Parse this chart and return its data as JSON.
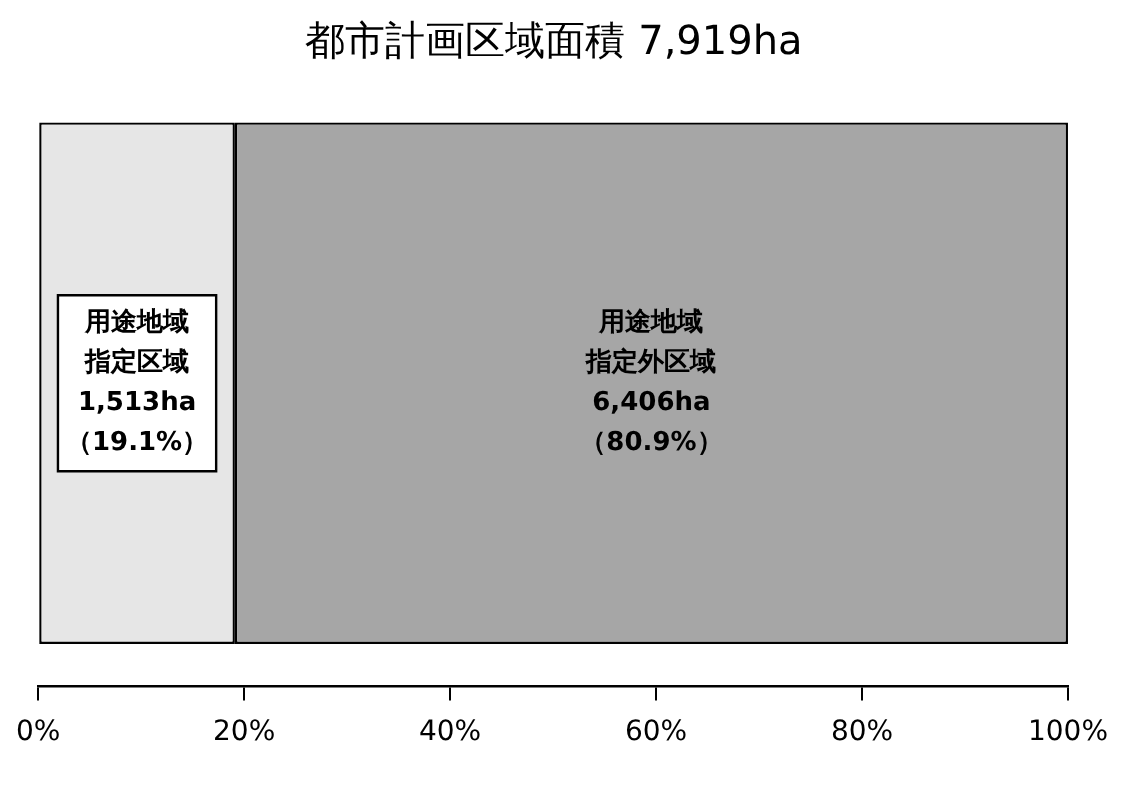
{
  "chart_data": {
    "type": "bar",
    "title": "都市計画区域面積 7,919ha",
    "orientation": "horizontal",
    "stacked": true,
    "categories": [
      null
    ],
    "series": [
      {
        "name": "用途地域指定区域",
        "color": "#e6e6e6",
        "values": [
          19.1
        ],
        "value_labels": [
          "1,513ha\n（19.1%）"
        ]
      },
      {
        "name": "用途地域指定外区域",
        "color": "#a6a6a6",
        "values": [
          80.9
        ],
        "value_labels": [
          "6,406ha\n（80.9%）"
        ]
      }
    ],
    "xlim": [
      0,
      100
    ],
    "xticks": [
      {
        "value": 0,
        "label": "0%"
      },
      {
        "value": 20,
        "label": "20%"
      },
      {
        "value": 40,
        "label": "40%"
      },
      {
        "value": 60,
        "label": "60%"
      },
      {
        "value": 80,
        "label": "80%"
      },
      {
        "value": 100,
        "label": "100%"
      }
    ],
    "grid": false,
    "legend": false,
    "tick_labels": "x"
  }
}
